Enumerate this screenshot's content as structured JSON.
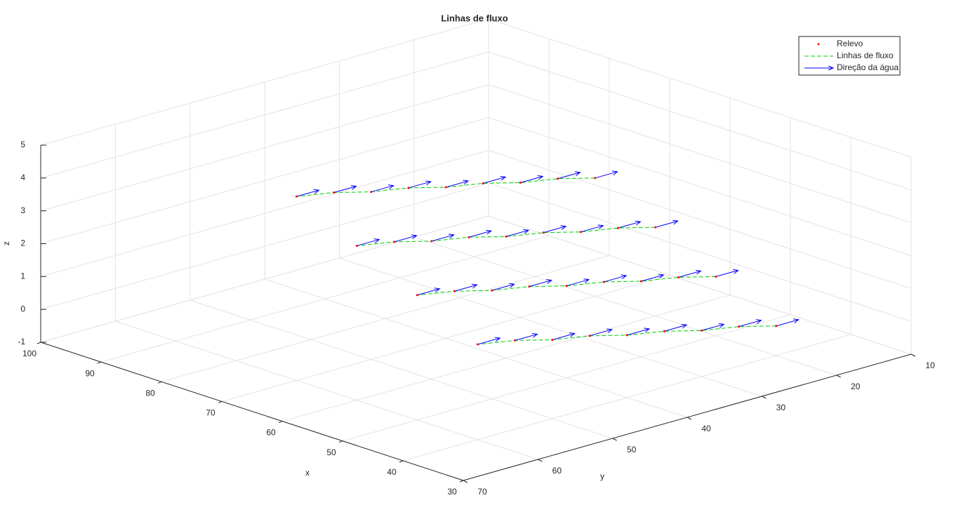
{
  "chart_data": {
    "type": "quiver3d",
    "title": "Linhas de fluxo",
    "xlabel": "x",
    "ylabel": "y",
    "zlabel": "z",
    "xlim": [
      30,
      100
    ],
    "ylim": [
      10,
      70
    ],
    "zlim": [
      -1,
      5
    ],
    "xticks": [
      30,
      40,
      50,
      60,
      70,
      80,
      90,
      100
    ],
    "yticks": [
      10,
      20,
      30,
      40,
      50,
      60,
      70
    ],
    "zticks": [
      -1,
      0,
      1,
      2,
      3,
      4,
      5
    ],
    "grid": true,
    "legend": "top-right",
    "series": [
      {
        "name": "Relevo",
        "color": "#ff0000"
      },
      {
        "name": "Linhas de fluxo",
        "color": "#00cc00"
      },
      {
        "name": "Direção da água",
        "color": "#0000ff"
      }
    ],
    "points": {
      "x": [
        40,
        40,
        40,
        40,
        40,
        40,
        40,
        40,
        40,
        50,
        50,
        50,
        50,
        50,
        50,
        50,
        50,
        50,
        60,
        60,
        60,
        60,
        60,
        60,
        60,
        60,
        60,
        70,
        70,
        70,
        70,
        70,
        70,
        70,
        70,
        70
      ],
      "y": [
        20,
        25,
        30,
        35,
        40,
        45,
        50,
        55,
        60,
        20,
        25,
        30,
        35,
        40,
        45,
        50,
        55,
        60,
        20,
        25,
        30,
        35,
        40,
        45,
        50,
        55,
        60,
        20,
        25,
        30,
        35,
        40,
        45,
        50,
        55,
        60
      ],
      "z": [
        -0.1,
        0.2,
        0.4,
        0.7,
        0.9,
        1.2,
        1.4,
        1.7,
        1.9,
        0.8,
        1.1,
        1.3,
        1.6,
        1.8,
        2.1,
        2.3,
        2.6,
        2.8,
        1.7,
        2.0,
        2.2,
        2.5,
        2.7,
        3.0,
        3.2,
        3.5,
        3.7,
        2.6,
        2.9,
        3.1,
        3.4,
        3.6,
        3.9,
        4.1,
        4.4,
        4.6
      ],
      "u": [
        0,
        0,
        0,
        0,
        0,
        0,
        0,
        0,
        0,
        0,
        0,
        0,
        0,
        0,
        0,
        0,
        0,
        0,
        0,
        0,
        0,
        0,
        0,
        0,
        0,
        0,
        0,
        0,
        0,
        0,
        0,
        0,
        0,
        0,
        0,
        0
      ],
      "v": [
        -3,
        -3,
        -3,
        -3,
        -3,
        -3,
        -3,
        -3,
        -3,
        -3,
        -3,
        -3,
        -3,
        -3,
        -3,
        -3,
        -3,
        -3,
        -3,
        -3,
        -3,
        -3,
        -3,
        -3,
        -3,
        -3,
        -3,
        -3,
        -3,
        -3,
        -3,
        -3,
        -3,
        -3,
        -3,
        -3
      ]
    }
  }
}
